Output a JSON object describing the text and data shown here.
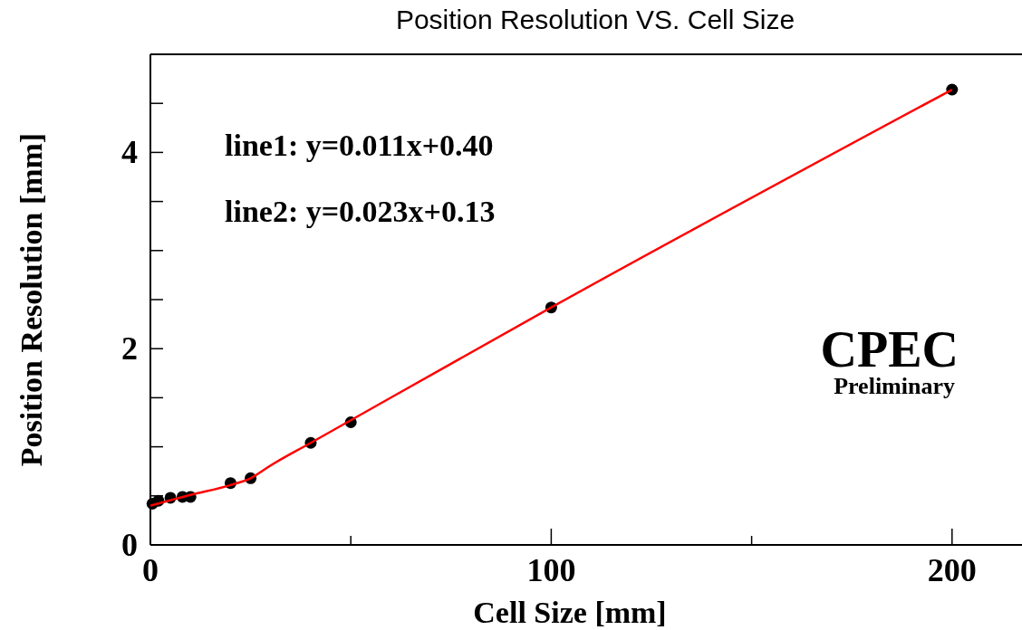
{
  "chart_data": {
    "type": "scatter",
    "title": "Position Resolution VS. Cell Size",
    "xlabel": "Cell Size [mm]",
    "ylabel": "Position Resolution [mm]",
    "x": [
      0.5,
      2,
      5,
      8,
      10,
      20,
      25,
      40,
      50,
      100,
      200
    ],
    "series": [
      {
        "color": "#000000",
        "marker": "circle",
        "values": [
          0.42,
          0.45,
          0.48,
          0.49,
          0.49,
          0.63,
          0.68,
          1.04,
          1.25,
          2.42,
          4.64
        ]
      },
      {
        "type": "line",
        "color": "#ff0000",
        "marker": "none",
        "line_style": "solid",
        "x": [
          0,
          10,
          20,
          25,
          30,
          40,
          100,
          200
        ],
        "values": [
          0.4,
          0.51,
          0.61,
          0.68,
          0.81,
          1.04,
          2.42,
          4.64
        ]
      }
    ],
    "xlim": [
      0,
      217
    ],
    "ylim": [
      0,
      5
    ],
    "xticks": [
      0,
      {
        "value": 50,
        "label": null
      },
      100,
      {
        "value": 150,
        "label": null
      },
      200
    ],
    "yticks": [
      0,
      {
        "value": 0.5,
        "label": null
      },
      {
        "value": 1,
        "label": null
      },
      {
        "value": 1.5,
        "label": null
      },
      2,
      {
        "value": 2.5,
        "label": null
      },
      {
        "value": 3,
        "label": null
      },
      {
        "value": 3.5,
        "label": null
      },
      4,
      {
        "value": 4.5,
        "label": null
      }
    ],
    "annotations": [
      "line1: y=0.011x+0.40",
      "line2: y=0.023x+0.13",
      "CPEC",
      "Preliminary"
    ],
    "grid": false
  }
}
